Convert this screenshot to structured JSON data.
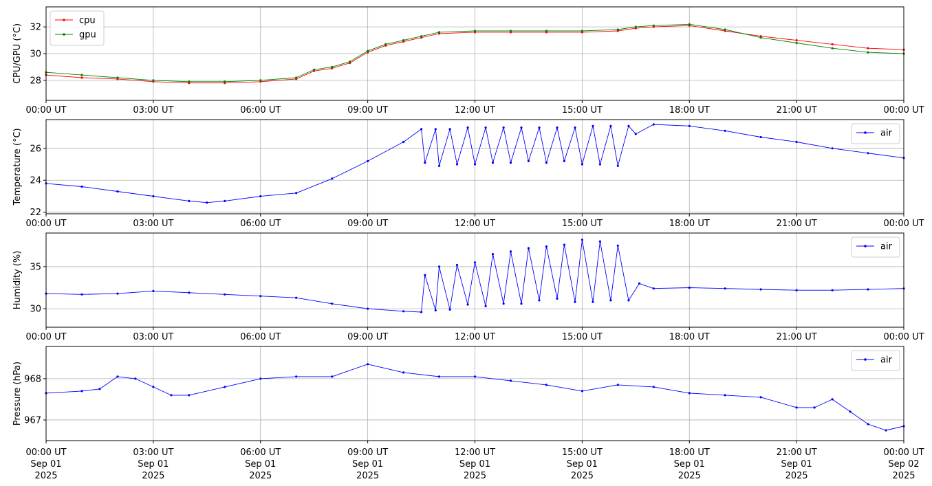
{
  "chart_data": [
    {
      "type": "line",
      "title": "",
      "xlabel": "",
      "ylabel": "CPU/GPU (°C)",
      "x_range": [
        "00:00",
        "24:00"
      ],
      "ylim": [
        26.5,
        33.5
      ],
      "y_ticks": [
        {
          "value": 28,
          "label": "28"
        },
        {
          "value": 30,
          "label": "30"
        },
        {
          "value": 32,
          "label": "32"
        }
      ],
      "x_tick_labels": [
        "00:00 UT",
        "03:00 UT",
        "06:00 UT",
        "09:00 UT",
        "12:00 UT",
        "15:00 UT",
        "18:00 UT",
        "21:00 UT",
        "00:00 UT"
      ],
      "grid": true,
      "legend": "upper-left",
      "series": [
        {
          "name": "cpu",
          "color": "#ff0000",
          "x": [
            0,
            1,
            2,
            3,
            4,
            5,
            6,
            7,
            7.5,
            8,
            8.5,
            9,
            9.5,
            10,
            10.5,
            11,
            12,
            13,
            14,
            15,
            16,
            16.5,
            17,
            18,
            19,
            20,
            21,
            22,
            23,
            24
          ],
          "y": [
            28.4,
            28.2,
            28.1,
            27.9,
            27.8,
            27.8,
            27.9,
            28.1,
            28.7,
            28.9,
            29.3,
            30.1,
            30.6,
            30.9,
            31.2,
            31.5,
            31.6,
            31.6,
            31.6,
            31.6,
            31.7,
            31.9,
            32.0,
            32.1,
            31.7,
            31.3,
            31.0,
            30.7,
            30.4,
            30.3
          ]
        },
        {
          "name": "gpu",
          "color": "#008000",
          "x": [
            0,
            1,
            2,
            3,
            4,
            5,
            6,
            7,
            7.5,
            8,
            8.5,
            9,
            9.5,
            10,
            10.5,
            11,
            12,
            13,
            14,
            15,
            16,
            16.5,
            17,
            18,
            19,
            20,
            21,
            22,
            23,
            24
          ],
          "y": [
            28.6,
            28.4,
            28.2,
            28.0,
            27.9,
            27.9,
            28.0,
            28.2,
            28.8,
            29.0,
            29.4,
            30.2,
            30.7,
            31.0,
            31.3,
            31.6,
            31.7,
            31.7,
            31.7,
            31.7,
            31.8,
            32.0,
            32.1,
            32.2,
            31.8,
            31.2,
            30.8,
            30.4,
            30.1,
            30.0
          ]
        }
      ]
    },
    {
      "type": "line",
      "title": "",
      "xlabel": "",
      "ylabel": "Temperature (°C)",
      "x_range": [
        "00:00",
        "24:00"
      ],
      "ylim": [
        21.9,
        27.8
      ],
      "y_ticks": [
        {
          "value": 22,
          "label": "22"
        },
        {
          "value": 24,
          "label": "24"
        },
        {
          "value": 26,
          "label": "26"
        }
      ],
      "x_tick_labels": [
        "00:00 UT",
        "03:00 UT",
        "06:00 UT",
        "09:00 UT",
        "12:00 UT",
        "15:00 UT",
        "18:00 UT",
        "21:00 UT",
        "00:00 UT"
      ],
      "grid": true,
      "legend": "upper-right",
      "series": [
        {
          "name": "air",
          "color": "#0000ff",
          "x": [
            0,
            1,
            2,
            3,
            4,
            4.5,
            5,
            6,
            7,
            8,
            9,
            10,
            10.5,
            10.6,
            10.9,
            11,
            11.3,
            11.5,
            11.8,
            12,
            12.3,
            12.5,
            12.8,
            13,
            13.3,
            13.5,
            13.8,
            14,
            14.3,
            14.5,
            14.8,
            15,
            15.3,
            15.5,
            15.8,
            16,
            16.3,
            16.5,
            17,
            18,
            19,
            20,
            21,
            22,
            23,
            24
          ],
          "y": [
            23.8,
            23.6,
            23.3,
            23.0,
            22.7,
            22.6,
            22.7,
            23.0,
            23.2,
            24.1,
            25.2,
            26.4,
            27.2,
            25.1,
            27.2,
            24.9,
            27.2,
            25.0,
            27.3,
            25.0,
            27.3,
            25.1,
            27.3,
            25.1,
            27.3,
            25.2,
            27.3,
            25.1,
            27.3,
            25.2,
            27.3,
            25.0,
            27.4,
            25.0,
            27.4,
            24.9,
            27.4,
            26.9,
            27.5,
            27.4,
            27.1,
            26.7,
            26.4,
            26.0,
            25.7,
            25.4
          ]
        }
      ]
    },
    {
      "type": "line",
      "title": "",
      "xlabel": "",
      "ylabel": "Humidity (%)",
      "x_range": [
        "00:00",
        "24:00"
      ],
      "ylim": [
        27.8,
        39.0
      ],
      "y_ticks": [
        {
          "value": 30,
          "label": "30"
        },
        {
          "value": 35,
          "label": "35"
        }
      ],
      "x_tick_labels": [
        "00:00 UT",
        "03:00 UT",
        "06:00 UT",
        "09:00 UT",
        "12:00 UT",
        "15:00 UT",
        "18:00 UT",
        "21:00 UT",
        "00:00 UT"
      ],
      "grid": true,
      "legend": "upper-right",
      "series": [
        {
          "name": "air",
          "color": "#0000ff",
          "x": [
            0,
            1,
            2,
            3,
            4,
            5,
            6,
            7,
            8,
            9,
            10,
            10.5,
            10.6,
            10.9,
            11,
            11.3,
            11.5,
            11.8,
            12,
            12.3,
            12.5,
            12.8,
            13,
            13.3,
            13.5,
            13.8,
            14,
            14.3,
            14.5,
            14.8,
            15,
            15.3,
            15.5,
            15.8,
            16,
            16.3,
            16.6,
            17,
            18,
            19,
            20,
            21,
            22,
            23,
            24
          ],
          "y": [
            31.8,
            31.7,
            31.8,
            32.1,
            31.9,
            31.7,
            31.5,
            31.3,
            30.6,
            30.0,
            29.7,
            29.6,
            34.0,
            29.8,
            35.0,
            29.9,
            35.2,
            30.5,
            35.5,
            30.3,
            36.5,
            30.6,
            36.8,
            30.6,
            37.2,
            31.0,
            37.4,
            31.2,
            37.6,
            30.8,
            38.2,
            30.8,
            38.0,
            31.0,
            37.5,
            31.0,
            33.0,
            32.4,
            32.5,
            32.4,
            32.3,
            32.2,
            32.2,
            32.3,
            32.4
          ]
        }
      ]
    },
    {
      "type": "line",
      "title": "",
      "xlabel": "",
      "ylabel": "Pressure (hPa)",
      "x_range": [
        "00:00",
        "24:00"
      ],
      "ylim": [
        966.5,
        968.78
      ],
      "y_ticks": [
        {
          "value": 967,
          "label": "967"
        },
        {
          "value": 968,
          "label": "968"
        }
      ],
      "x_tick_labels": [
        {
          "time": "00:00 UT",
          "date": "Sep 01",
          "year": "2025"
        },
        {
          "time": "03:00 UT",
          "date": "Sep 01",
          "year": "2025"
        },
        {
          "time": "06:00 UT",
          "date": "Sep 01",
          "year": "2025"
        },
        {
          "time": "09:00 UT",
          "date": "Sep 01",
          "year": "2025"
        },
        {
          "time": "12:00 UT",
          "date": "Sep 01",
          "year": "2025"
        },
        {
          "time": "15:00 UT",
          "date": "Sep 01",
          "year": "2025"
        },
        {
          "time": "18:00 UT",
          "date": "Sep 01",
          "year": "2025"
        },
        {
          "time": "21:00 UT",
          "date": "Sep 01",
          "year": "2025"
        },
        {
          "time": "00:00 UT",
          "date": "Sep 02",
          "year": "2025"
        }
      ],
      "grid": true,
      "legend": "upper-right",
      "series": [
        {
          "name": "air",
          "color": "#0000ff",
          "x": [
            0,
            1,
            1.5,
            2,
            2.5,
            3,
            3.5,
            4,
            5,
            6,
            7,
            8,
            9,
            10,
            11,
            12,
            13,
            14,
            15,
            16,
            17,
            18,
            19,
            20,
            21,
            21.5,
            22,
            22.5,
            23,
            23.5,
            24
          ],
          "y": [
            967.65,
            967.7,
            967.75,
            968.05,
            968.0,
            967.8,
            967.6,
            967.6,
            967.8,
            968.0,
            968.05,
            968.05,
            968.35,
            968.15,
            968.05,
            968.05,
            967.95,
            967.85,
            967.7,
            967.85,
            967.8,
            967.65,
            967.6,
            967.55,
            967.3,
            967.3,
            967.5,
            967.2,
            966.9,
            966.75,
            966.85
          ]
        }
      ]
    }
  ]
}
